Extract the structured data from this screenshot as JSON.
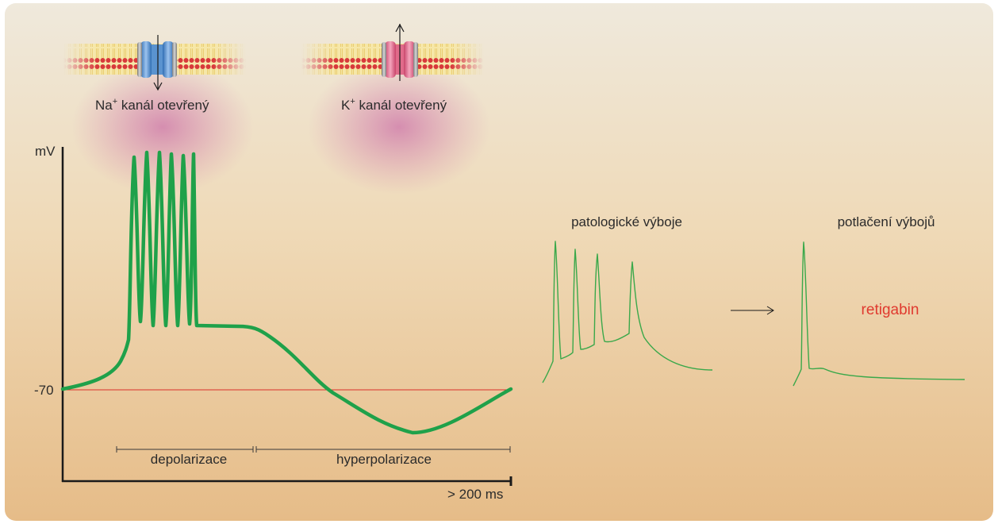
{
  "channels": {
    "na_ion": "Na",
    "na_charge": "+",
    "na_text": " kanál otevřený",
    "k_ion": "K",
    "k_charge": "+",
    "k_text": " kanál otevřený"
  },
  "main_graph": {
    "y_unit": "mV",
    "resting_label": "-70",
    "x_label": "> 200 ms",
    "phase_depolarization": "depolarizace",
    "phase_hyperpolarization": "hyperpolarizace"
  },
  "inset": {
    "pathological_title": "patologické výboje",
    "suppressed_title": "potlačení výbojů",
    "drug_label": "retigabin"
  },
  "colors": {
    "trace": "#1fa14a",
    "thin_trace": "#3aa84a",
    "baseline": "#d9302a",
    "drug_text": "#e03a2f",
    "na_channel": "#4a86c8",
    "k_channel": "#e06a8a",
    "axis": "#1a1a1a"
  }
}
